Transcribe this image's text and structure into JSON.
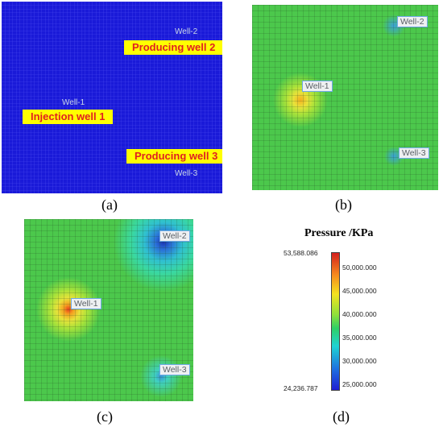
{
  "panels": [
    {
      "id": "a",
      "label": "(a)",
      "well_tags": [
        "Well-2",
        "Well-1",
        "Well-3"
      ],
      "callouts": [
        "Producing well 2",
        "Injection well 1",
        "Producing well 3"
      ]
    },
    {
      "id": "b",
      "label": "(b)",
      "well_tags": [
        "Well-2",
        "Well-1",
        "Well-3"
      ]
    },
    {
      "id": "c",
      "label": "(c)",
      "well_tags": [
        "Well-2",
        "Well-1",
        "Well-3"
      ]
    },
    {
      "id": "d",
      "label": "(d)"
    }
  ],
  "colorbar": {
    "title": "Pressure /KPa",
    "max_label": "53,588.086",
    "min_label": "24,236.787",
    "ticks": [
      "50,000.000",
      "45,000.000",
      "40,000.000",
      "35,000.000",
      "30,000.000",
      "25,000.000"
    ],
    "colors": [
      "#d4201e",
      "#f58a1f",
      "#f5e31f",
      "#8fe03a",
      "#2fd066",
      "#1fd3d3",
      "#1f6fe0",
      "#1f1fd4"
    ]
  },
  "colors": {
    "grid_background_a": "#1a1ad8",
    "field_green": "#4cc84c",
    "high_pressure": "#f08a20",
    "low_pressure": "#2a5ad8"
  }
}
